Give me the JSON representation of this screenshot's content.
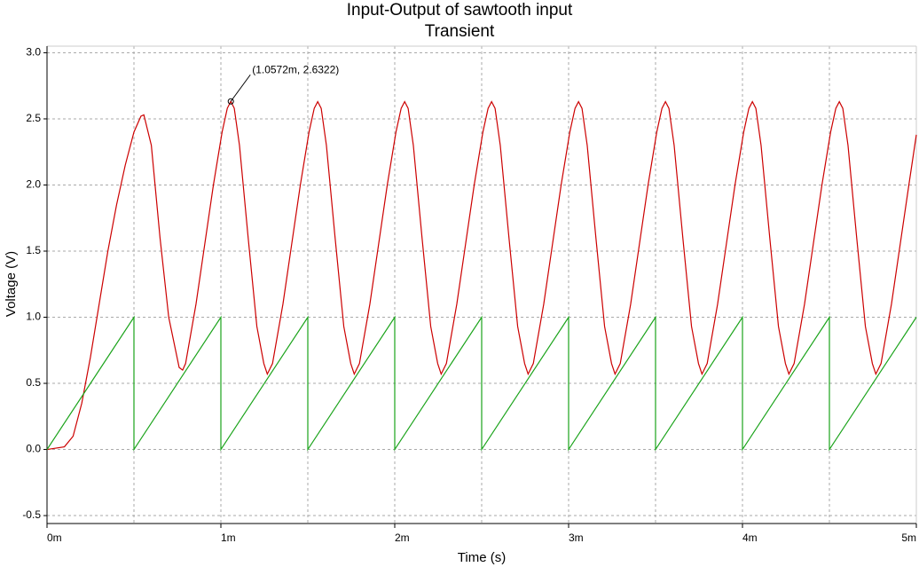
{
  "chart_data": {
    "type": "line",
    "title": "Input-Output of sawtooth input",
    "subtitle": "Transient",
    "xlabel": "Time (s)",
    "ylabel": "Voltage (V)",
    "xlim": [
      0,
      0.005
    ],
    "ylim": [
      -0.56,
      3.05
    ],
    "xticks": [
      {
        "value": 0,
        "label": "0m"
      },
      {
        "value": 0.001,
        "label": "1m"
      },
      {
        "value": 0.002,
        "label": "2m"
      },
      {
        "value": 0.003,
        "label": "3m"
      },
      {
        "value": 0.004,
        "label": "4m"
      },
      {
        "value": 0.005,
        "label": "5m"
      }
    ],
    "xminor_ticks": [
      0.0005,
      0.0015,
      0.0025,
      0.0035,
      0.0045
    ],
    "yticks": [
      -0.5,
      {
        "value": 0,
        "label": "0.0"
      },
      0.5,
      {
        "value": 1,
        "label": "1.0"
      },
      1.5,
      {
        "value": 2,
        "label": "2.0"
      },
      2.5,
      {
        "value": 3,
        "label": "3.0"
      }
    ],
    "grid": true,
    "series": [
      {
        "color": "#cc0000",
        "x": [
          0,
          0.0001,
          0.00015,
          0.0002,
          0.00025,
          0.0003,
          0.00035,
          0.0004,
          0.00045,
          0.0005,
          0.00054,
          0.000557,
          0.0006,
          0.00065,
          0.0007,
          0.00076,
          0.00078,
          0.000797,
          0.000857,
          0.000907,
          0.000957,
          0.001007,
          0.001037,
          0.0010572,
          0.001077,
          0.001107,
          0.001157,
          0.001207,
          0.001247,
          0.001267,
          0.001297,
          0.001357,
          0.001407,
          0.001457,
          0.001507,
          0.001537,
          0.001557,
          0.001577,
          0.001607,
          0.001657,
          0.001707,
          0.001747,
          0.001767,
          0.001797,
          0.001857,
          0.001907,
          0.001957,
          0.002007,
          0.002037,
          0.002057,
          0.002077,
          0.002107,
          0.002157,
          0.002207,
          0.002247,
          0.002267,
          0.002297,
          0.002357,
          0.002407,
          0.002457,
          0.002507,
          0.002537,
          0.002557,
          0.002577,
          0.002607,
          0.002657,
          0.002707,
          0.002747,
          0.002767,
          0.002797,
          0.002857,
          0.002907,
          0.002957,
          0.003007,
          0.003037,
          0.003057,
          0.003077,
          0.003107,
          0.003157,
          0.003207,
          0.003247,
          0.003267,
          0.003297,
          0.003357,
          0.003407,
          0.003457,
          0.003507,
          0.003537,
          0.003557,
          0.003577,
          0.003607,
          0.003657,
          0.003707,
          0.003747,
          0.003767,
          0.003797,
          0.003857,
          0.003907,
          0.003957,
          0.004007,
          0.004037,
          0.004057,
          0.004077,
          0.004107,
          0.004157,
          0.004207,
          0.004247,
          0.004267,
          0.004297,
          0.004357,
          0.004407,
          0.004457,
          0.004507,
          0.004537,
          0.004557,
          0.004577,
          0.004607,
          0.004657,
          0.004707,
          0.004747,
          0.004767,
          0.004797,
          0.004857,
          0.004907,
          0.004957,
          0.005
        ],
        "values": [
          0,
          0.02,
          0.1,
          0.35,
          0.7,
          1.1,
          1.5,
          1.85,
          2.15,
          2.4,
          2.52,
          2.53,
          2.3,
          1.6,
          1.0,
          0.62,
          0.6,
          0.65,
          1.1,
          1.55,
          2.0,
          2.4,
          2.58,
          2.6322,
          2.58,
          2.3,
          1.6,
          0.93,
          0.65,
          0.57,
          0.65,
          1.1,
          1.55,
          2.0,
          2.4,
          2.58,
          2.63,
          2.58,
          2.3,
          1.6,
          0.93,
          0.65,
          0.57,
          0.65,
          1.1,
          1.55,
          2.0,
          2.4,
          2.58,
          2.63,
          2.58,
          2.3,
          1.6,
          0.93,
          0.65,
          0.57,
          0.65,
          1.1,
          1.55,
          2.0,
          2.4,
          2.58,
          2.63,
          2.58,
          2.3,
          1.6,
          0.93,
          0.65,
          0.57,
          0.65,
          1.1,
          1.55,
          2.0,
          2.4,
          2.58,
          2.63,
          2.58,
          2.3,
          1.6,
          0.93,
          0.65,
          0.57,
          0.65,
          1.1,
          1.55,
          2.0,
          2.4,
          2.58,
          2.63,
          2.58,
          2.3,
          1.6,
          0.93,
          0.65,
          0.57,
          0.65,
          1.1,
          1.55,
          2.0,
          2.4,
          2.58,
          2.63,
          2.58,
          2.3,
          1.6,
          0.93,
          0.65,
          0.57,
          0.65,
          1.1,
          1.55,
          2.0,
          2.4,
          2.58,
          2.63,
          2.58,
          2.3,
          1.6,
          0.93,
          0.65,
          0.57,
          0.65,
          1.1,
          1.55,
          2.0,
          2.38
        ]
      },
      {
        "color": "#1aa31a",
        "x": [
          0,
          0.0005,
          0.0005,
          0.001,
          0.001,
          0.0015,
          0.0015,
          0.002,
          0.002,
          0.0025,
          0.0025,
          0.003,
          0.003,
          0.0035,
          0.0035,
          0.004,
          0.004,
          0.0045,
          0.0045,
          0.005
        ],
        "values": [
          0,
          1,
          0,
          1,
          0,
          1,
          0,
          1,
          0,
          1,
          0,
          1,
          0,
          1,
          0,
          1,
          0,
          1,
          0,
          1
        ]
      }
    ],
    "annotation": {
      "text": "(1.0572m, 2.6322)",
      "x": 0.0010572,
      "y": 2.6322
    }
  }
}
